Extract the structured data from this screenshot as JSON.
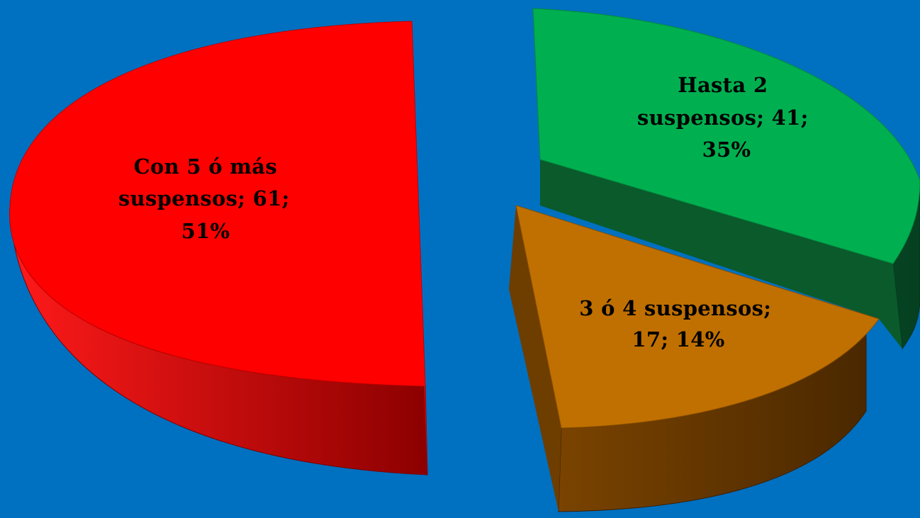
{
  "background_color": "#0070c0",
  "chart_data": {
    "type": "pie",
    "style": "3d-exploded",
    "title": "",
    "legend": "none",
    "slices": [
      {
        "name": "Con 5 ó más suspensos",
        "value": 61,
        "percent": 51,
        "color": "#ff0000",
        "side_color": "#b00000",
        "label_lines": [
          "Con 5 ó más",
          "suspensos; 61;",
          "51%"
        ]
      },
      {
        "name": "Hasta 2 suspensos",
        "value": 41,
        "percent": 35,
        "color": "#00b050",
        "side_color": "#0a5a2c",
        "label_lines": [
          "Hasta 2",
          "suspensos; 41;",
          "35%"
        ]
      },
      {
        "name": "3 ó 4 suspensos",
        "value": 17,
        "percent": 14,
        "color": "#c07000",
        "side_color": "#5a3200",
        "label_lines": [
          "3 ó 4 suspensos;",
          "17; 14%"
        ]
      }
    ]
  }
}
